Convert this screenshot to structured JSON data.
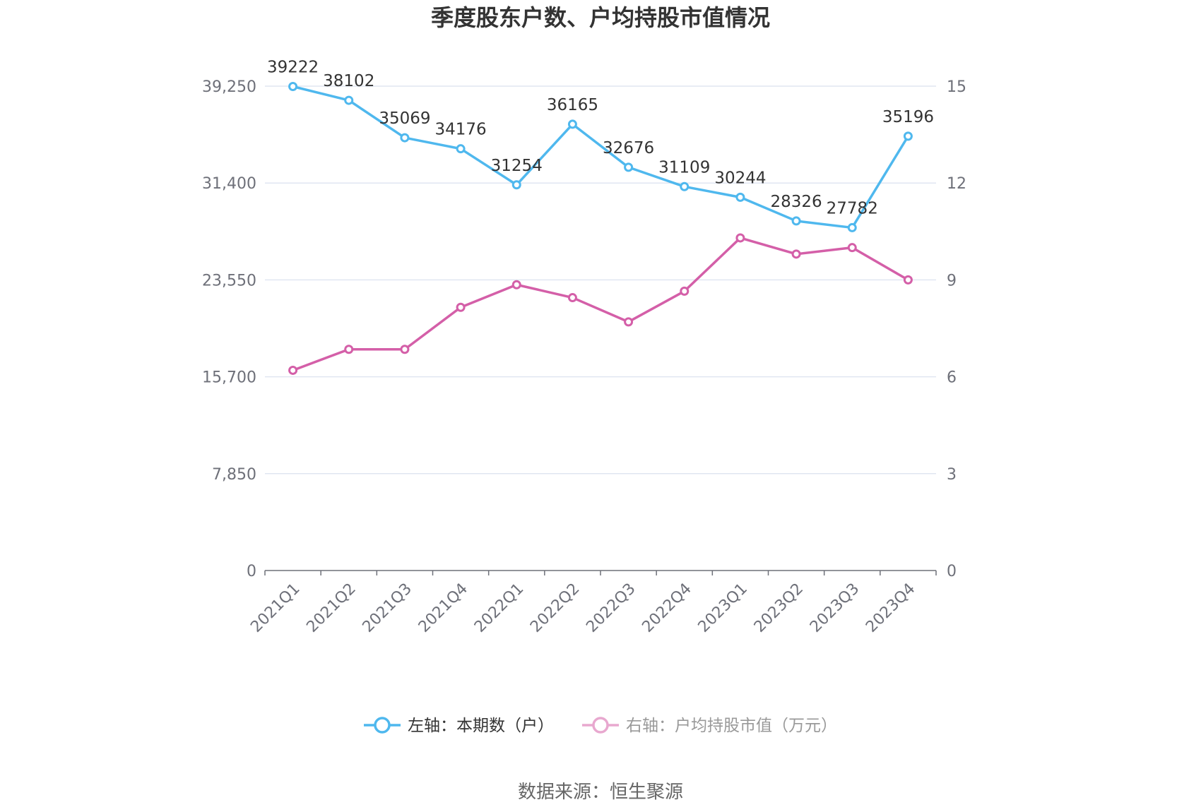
{
  "chart_data": {
    "type": "line",
    "title": "季度股东户数、户均持股市值情况",
    "categories": [
      "2021Q1",
      "2021Q2",
      "2021Q3",
      "2021Q4",
      "2022Q1",
      "2022Q2",
      "2022Q3",
      "2022Q4",
      "2023Q1",
      "2023Q2",
      "2023Q3",
      "2023Q4"
    ],
    "y_left": {
      "ticks": [
        "0",
        "7,850",
        "15,700",
        "23,550",
        "31,400",
        "39,250"
      ],
      "ylim": [
        0,
        39250
      ]
    },
    "y_right": {
      "ticks": [
        "0",
        "3",
        "6",
        "9",
        "12",
        "15"
      ],
      "ylim": [
        0,
        15
      ]
    },
    "series": [
      {
        "name": "左轴：本期数（户）",
        "axis": "left",
        "color": "#4fb8ee",
        "values": [
          39222,
          38102,
          35069,
          34176,
          31254,
          36165,
          32676,
          31109,
          30244,
          28326,
          27782,
          35196
        ],
        "labels": [
          "39222",
          "38102",
          "35069",
          "34176",
          "31254",
          "36165",
          "32676",
          "31109",
          "30244",
          "28326",
          "27782",
          "35196"
        ]
      },
      {
        "name": "右轴：户均持股市值（万元）",
        "axis": "right",
        "color": "#d45fa8",
        "values": [
          6.2,
          6.85,
          6.85,
          8.15,
          8.85,
          8.45,
          7.7,
          8.65,
          10.3,
          9.8,
          10.0,
          9.0
        ]
      }
    ],
    "grid": true,
    "legend_position": "bottom"
  },
  "source": "数据来源：恒生聚源"
}
